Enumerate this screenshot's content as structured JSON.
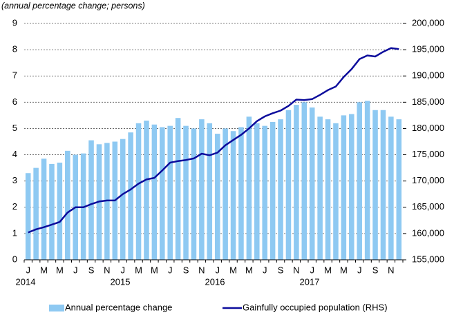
{
  "chart_data": {
    "type": "bar-line",
    "title": "(annual percentage change; persons)",
    "categories": [
      "J",
      null,
      "M",
      null,
      "M",
      null,
      "J",
      null,
      "S",
      null,
      "N",
      null,
      "J",
      null,
      "M",
      null,
      "M",
      null,
      "J",
      null,
      "S",
      null,
      "N",
      null,
      "J",
      null,
      "M",
      null,
      "M",
      null,
      "J",
      null,
      "S",
      null,
      "N",
      null,
      "J",
      null,
      "M",
      null,
      "M",
      null,
      "J",
      null,
      "S",
      null,
      "N",
      null
    ],
    "years": [
      "2014",
      "2015",
      "2016",
      "2017"
    ],
    "series": [
      {
        "name": "Annual percentage change",
        "type": "bar",
        "color": "#8ec9f2",
        "values": [
          3.3,
          3.5,
          3.85,
          3.65,
          3.7,
          4.15,
          4.0,
          4.05,
          4.55,
          4.4,
          4.45,
          4.5,
          4.6,
          4.85,
          5.2,
          5.3,
          5.15,
          5.05,
          5.1,
          5.4,
          5.1,
          5.0,
          5.35,
          5.2,
          4.8,
          5.0,
          4.9,
          5.05,
          5.45,
          5.2,
          5.1,
          5.25,
          5.35,
          5.7,
          5.9,
          6.0,
          5.8,
          5.45,
          5.35,
          5.2,
          5.5,
          5.55,
          6.0,
          6.05,
          5.7,
          5.7,
          5.45,
          5.35
        ]
      },
      {
        "name": "Gainfully occupied population (RHS)",
        "type": "line",
        "color": "#0c0c9c",
        "axis": "y2",
        "values": [
          160200,
          160800,
          161200,
          161700,
          162200,
          164000,
          165000,
          165000,
          165600,
          166100,
          166300,
          166300,
          167500,
          168400,
          169500,
          170300,
          170600,
          172000,
          173500,
          173800,
          174000,
          174300,
          175200,
          174900,
          175400,
          176800,
          177800,
          178800,
          180000,
          181400,
          182300,
          182900,
          183400,
          184300,
          185500,
          185400,
          185600,
          186400,
          187300,
          188000,
          189800,
          191300,
          193200,
          193900,
          193700,
          194600,
          195300,
          195100
        ]
      }
    ],
    "ylim": [
      0,
      9
    ],
    "yticks": [
      0,
      1,
      2,
      3,
      4,
      5,
      6,
      7,
      8,
      9
    ],
    "y2lim": [
      155000,
      200000
    ],
    "y2ticks": [
      {
        "value": 155000,
        "label": "155,000"
      },
      {
        "value": 160000,
        "label": "160,000"
      },
      {
        "value": 165000,
        "label": "165,000"
      },
      {
        "value": 170000,
        "label": "170,000"
      },
      {
        "value": 175000,
        "label": "175,000"
      },
      {
        "value": 180000,
        "label": "180,000"
      },
      {
        "value": 185000,
        "label": "185,000"
      },
      {
        "value": 190000,
        "label": "190,000"
      },
      {
        "value": 195000,
        "label": "195,000"
      },
      {
        "value": 200000,
        "label": "200,000"
      }
    ],
    "grid": true
  }
}
